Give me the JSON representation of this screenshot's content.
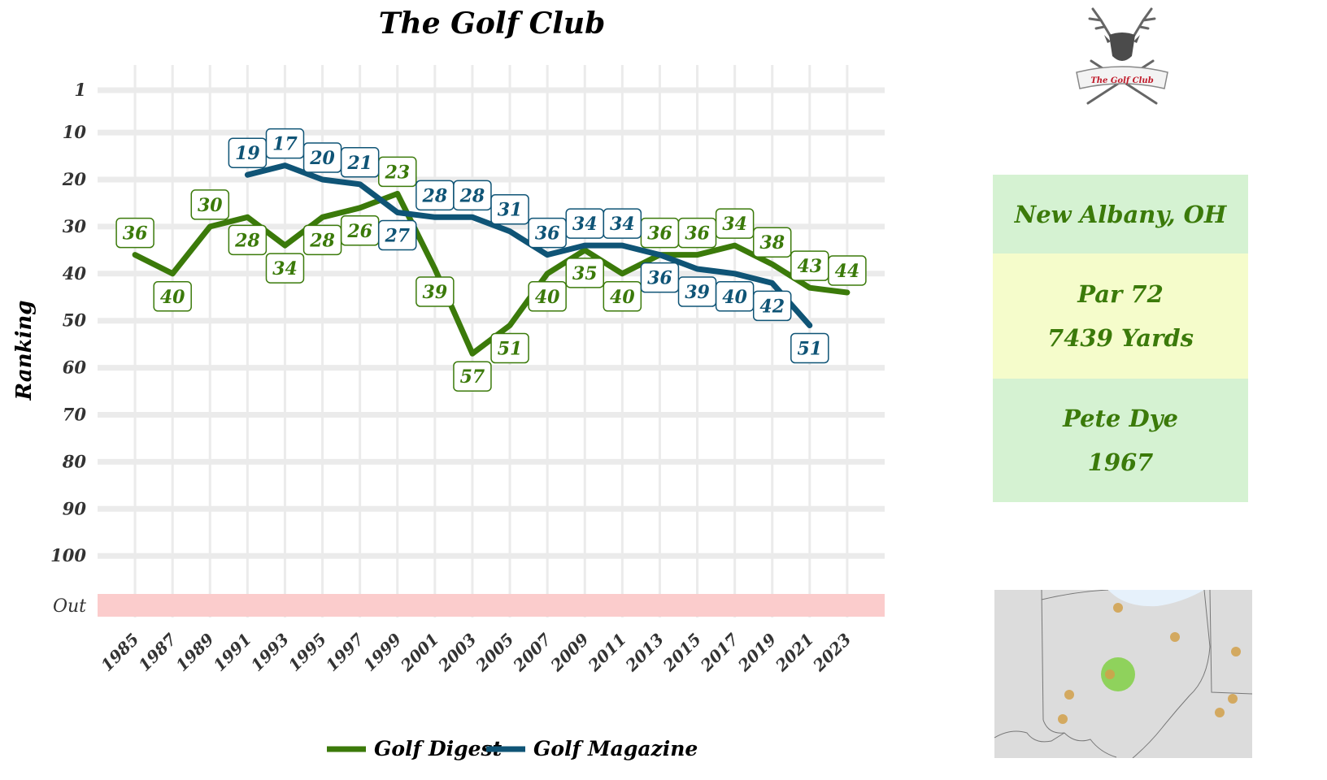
{
  "chart_data": {
    "type": "line",
    "title": "The Golf Club",
    "ylabel": "Ranking",
    "xlabel": "",
    "x_ticks": [
      "1985",
      "1987",
      "1989",
      "1991",
      "1993",
      "1995",
      "1997",
      "1999",
      "2001",
      "2003",
      "2005",
      "2007",
      "2009",
      "2011",
      "2013",
      "2015",
      "2017",
      "2019",
      "2021",
      "2023"
    ],
    "y_ticks": [
      "1",
      "10",
      "20",
      "30",
      "40",
      "50",
      "60",
      "70",
      "80",
      "90",
      "100",
      "Out"
    ],
    "y_reversed": true,
    "ylim": [
      1,
      100
    ],
    "out_band_color": "#fbcccc",
    "grid": true,
    "legend_position": "bottom",
    "series": [
      {
        "name": "Golf Digest",
        "color": "#3b7a0a",
        "points": [
          {
            "x": 1985,
            "y": 36
          },
          {
            "x": 1987,
            "y": 40
          },
          {
            "x": 1989,
            "y": 30
          },
          {
            "x": 1991,
            "y": 28
          },
          {
            "x": 1993,
            "y": 34
          },
          {
            "x": 1995,
            "y": 28
          },
          {
            "x": 1997,
            "y": 26
          },
          {
            "x": 1999,
            "y": 23
          },
          {
            "x": 2001,
            "y": 39
          },
          {
            "x": 2003,
            "y": 57
          },
          {
            "x": 2005,
            "y": 51
          },
          {
            "x": 2007,
            "y": 40
          },
          {
            "x": 2009,
            "y": 35
          },
          {
            "x": 2011,
            "y": 40
          },
          {
            "x": 2013,
            "y": 36
          },
          {
            "x": 2015,
            "y": 36
          },
          {
            "x": 2017,
            "y": 34
          },
          {
            "x": 2019,
            "y": 38
          },
          {
            "x": 2021,
            "y": 43
          },
          {
            "x": 2023,
            "y": 44
          }
        ],
        "label_pos": [
          "above",
          "below",
          "above",
          "below",
          "below",
          "below",
          "below",
          "above",
          "below",
          "below",
          "below",
          "below",
          "below",
          "below",
          "above",
          "above",
          "above",
          "above",
          "above",
          "above"
        ]
      },
      {
        "name": "Golf Magazine",
        "color": "#0f5476",
        "points": [
          {
            "x": 1991,
            "y": 19
          },
          {
            "x": 1993,
            "y": 17
          },
          {
            "x": 1995,
            "y": 20
          },
          {
            "x": 1997,
            "y": 21
          },
          {
            "x": 1999,
            "y": 27
          },
          {
            "x": 2001,
            "y": 28
          },
          {
            "x": 2003,
            "y": 28
          },
          {
            "x": 2005,
            "y": 31
          },
          {
            "x": 2007,
            "y": 36
          },
          {
            "x": 2009,
            "y": 34
          },
          {
            "x": 2011,
            "y": 34
          },
          {
            "x": 2013,
            "y": 36
          },
          {
            "x": 2015,
            "y": 39
          },
          {
            "x": 2017,
            "y": 40
          },
          {
            "x": 2019,
            "y": 42
          },
          {
            "x": 2021,
            "y": 51
          }
        ],
        "label_pos": [
          "above",
          "above",
          "above",
          "above",
          "below",
          "above",
          "above",
          "above",
          "above",
          "above",
          "above",
          "below",
          "below",
          "below",
          "below",
          "below"
        ]
      }
    ]
  },
  "info": {
    "location": "New Albany, OH",
    "par": "Par 72",
    "yards": "7439 Yards",
    "designer": "Pete Dye",
    "year": "1967"
  },
  "logo": {
    "text": "The Golf Club",
    "icon": "stag-head-crossed-clubs-icon"
  },
  "map": {
    "icon": "ohio-region-map",
    "highlight_color": "#7ccf3c",
    "other_courses_color": "#d1a04a"
  }
}
